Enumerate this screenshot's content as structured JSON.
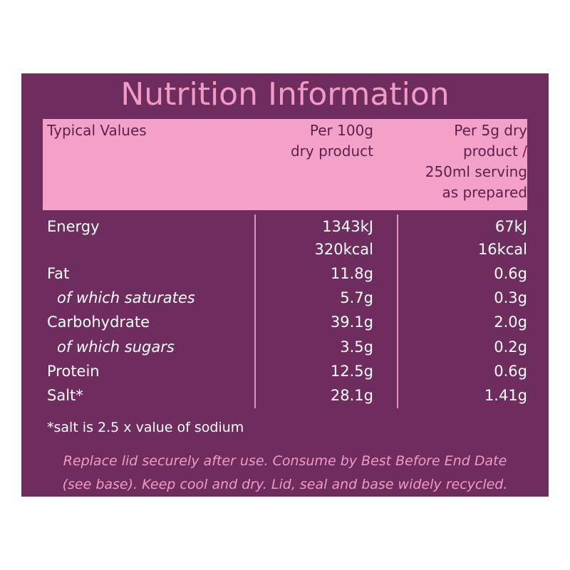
{
  "header": {
    "title": "Nutrition Information"
  },
  "table": {
    "columns": [
      [
        "Typical Values"
      ],
      [
        "Per 100g",
        "dry product"
      ],
      [
        "Per 5g dry",
        "product /",
        "250ml serving",
        "as prepared"
      ]
    ],
    "rows": [
      [
        "Energy",
        "1343kJ",
        "67kJ"
      ],
      [
        null,
        "320kcal",
        "16kcal"
      ],
      [
        "Fat",
        "11.8g",
        "0.6g"
      ],
      [
        "of which saturates",
        "5.7g",
        "0.3g"
      ],
      [
        "Carbohydrate",
        "39.1g",
        "2.0g"
      ],
      [
        "of which sugars",
        "3.5g",
        "0.2g"
      ],
      [
        "Protein",
        "12.5g",
        "0.6g"
      ],
      [
        "Salt*",
        "28.1g",
        "1.41g"
      ]
    ],
    "footnote": "*salt is 2.5 x value of sodium"
  },
  "footer": [
    "Replace lid securely after use. Consume by Best Before End Date",
    "(see base). Keep cool and dry. Lid, seal and base widely recycled."
  ]
}
